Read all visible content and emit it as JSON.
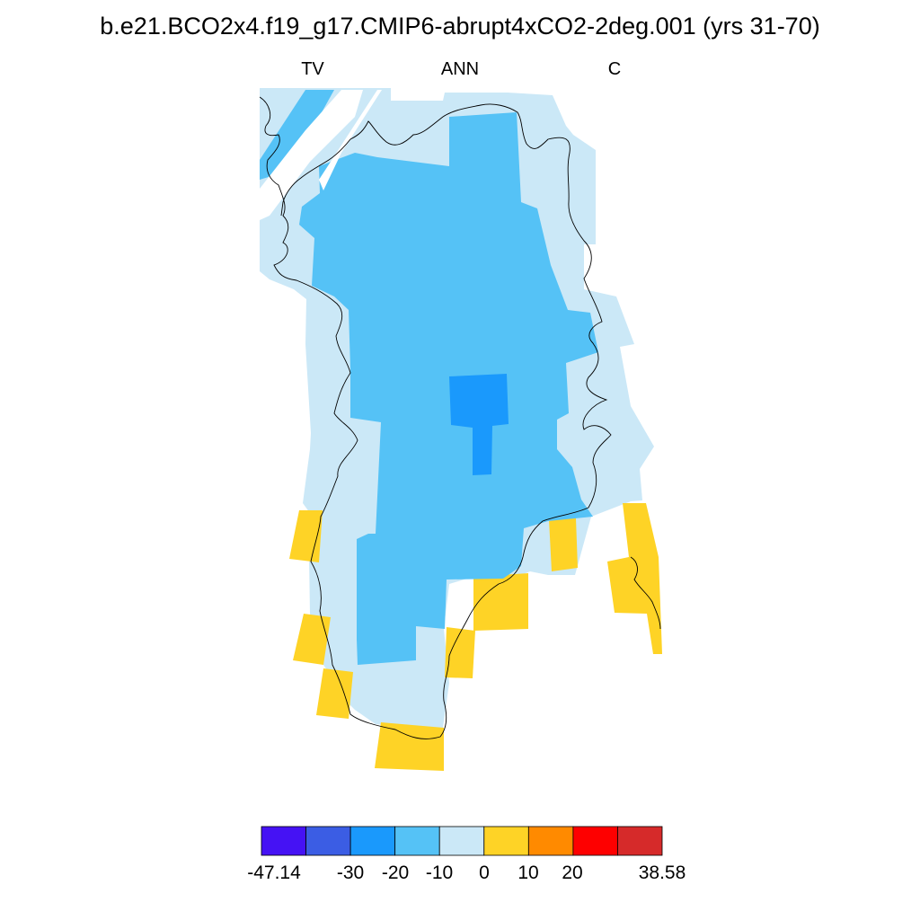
{
  "title": "b.e21.BCO2x4.f19_g17.CMIP6-abrupt4xCO2-2deg.001 (yrs 31-70)",
  "labels": {
    "variable": "TV",
    "season": "ANN",
    "units": "C"
  },
  "legend": {
    "colors": [
      "#4512f4",
      "#3b5de4",
      "#1a99fc",
      "#55c2f6",
      "#cbe8f7",
      "#fed326",
      "#ff8a00",
      "#fe0000",
      "#d62a2a"
    ],
    "ticks": [
      {
        "value": "-47.14"
      },
      {
        "value": "-30"
      },
      {
        "value": "-20"
      },
      {
        "value": "-10"
      },
      {
        "value": "0"
      },
      {
        "value": "10"
      },
      {
        "value": "20"
      },
      {
        "value": "38.58"
      }
    ]
  },
  "map_data": {
    "projection": "polar-stereographic",
    "region": "Greenland",
    "fill_colors": {
      "dark_blue": "#1a99fc",
      "medium_blue": "#55c2f6",
      "light_blue": "#cbe8f7",
      "yellow": "#fed326"
    },
    "coastline_color": "#000000"
  }
}
